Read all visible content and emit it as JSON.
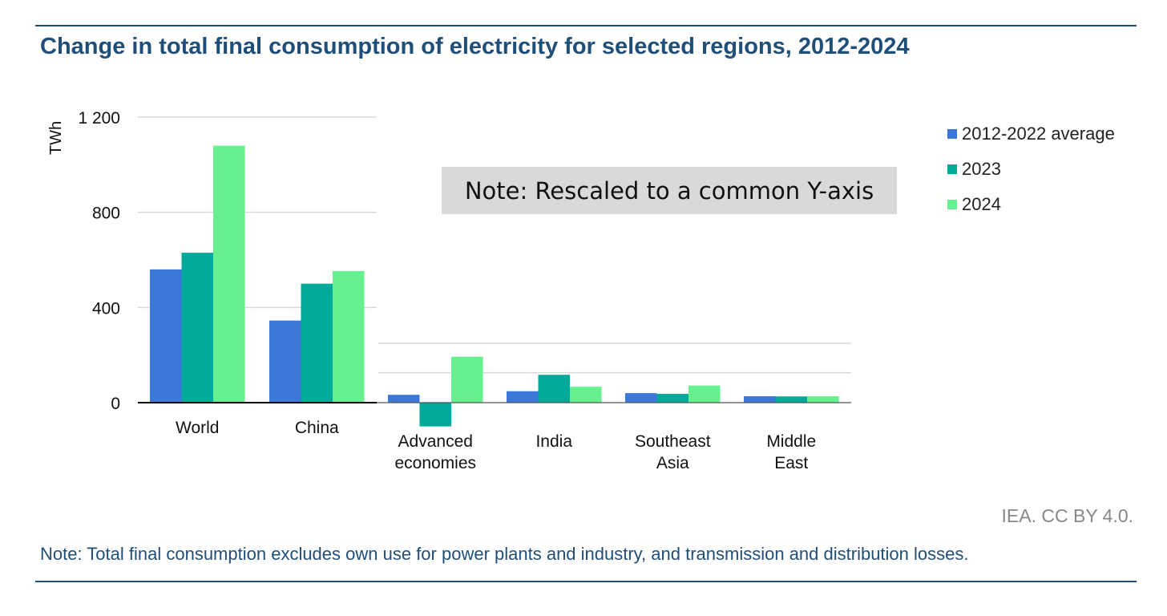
{
  "title": "Change in total final consumption of electricity for selected regions, 2012-2024",
  "annotation": "Note: Rescaled to a common Y-axis",
  "credit": "IEA. CC BY 4.0.",
  "footnote": "Note: Total final consumption excludes own use for power plants and industry, and transmission and distribution losses.",
  "colors": {
    "avg": "#3c78d8",
    "y2023": "#00a99a",
    "y2024": "#66f08f",
    "grid": "#d9d9d9",
    "axis": "#000000",
    "title": "#1f4e79"
  },
  "chart_data": {
    "type": "bar",
    "ylabel": "TWh",
    "ylim": [
      -110,
      1200
    ],
    "yticks": [
      {
        "value": 0,
        "label": "0"
      },
      {
        "value": 400,
        "label": "400"
      },
      {
        "value": 800,
        "label": "800"
      },
      {
        "value": 1200,
        "label": "1 200"
      }
    ],
    "categories": [
      {
        "lines": [
          "World"
        ]
      },
      {
        "lines": [
          "China"
        ]
      },
      {
        "lines": [
          "Advanced",
          "economies"
        ]
      },
      {
        "lines": [
          "India"
        ]
      },
      {
        "lines": [
          "Southeast",
          "Asia"
        ]
      },
      {
        "lines": [
          "Middle",
          "East"
        ]
      }
    ],
    "series": [
      {
        "name": "2012-2022 average",
        "color": "#3c78d8",
        "values": [
          560,
          345,
          33,
          48,
          40,
          27
        ]
      },
      {
        "name": "2023",
        "color": "#00a99a",
        "values": [
          630,
          500,
          -100,
          117,
          37,
          26
        ]
      },
      {
        "name": "2024",
        "color": "#66f08f",
        "values": [
          1080,
          553,
          193,
          67,
          72,
          27
        ]
      }
    ]
  }
}
